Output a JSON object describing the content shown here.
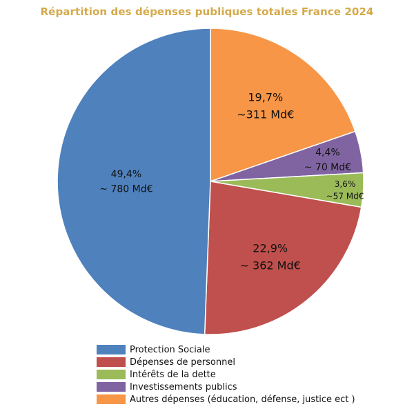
{
  "chart_data": {
    "type": "pie",
    "title": "Répartition des dépenses publiques totales France 2024",
    "slices": [
      {
        "name": "Protection Sociale",
        "percent": 49.4,
        "pct_label": "49,4%",
        "amount_label": "~ 780 Md€",
        "color": "#4f81bd"
      },
      {
        "name": "Dépenses de personnel",
        "percent": 22.9,
        "pct_label": "22,9%",
        "amount_label": "~ 362 Md€",
        "color": "#c0504d"
      },
      {
        "name": "Intérêts de la dette",
        "percent": 3.6,
        "pct_label": "3,6%",
        "amount_label": "~57 Md€",
        "color": "#9bbb59"
      },
      {
        "name": "Investissements publics",
        "percent": 4.4,
        "pct_label": "4,4%",
        "amount_label": "~ 70 Md€",
        "color": "#8064a2"
      },
      {
        "name": "Autres dépenses (éducation, défense, justice ect )",
        "percent": 19.7,
        "pct_label": "19,7%",
        "amount_label": "~311 Md€",
        "color": "#f79646"
      }
    ],
    "start_angle": "12 o'clock, clockwise",
    "slice_order": [
      "Autres dépenses (éducation, défense, justice ect )",
      "Investissements publics",
      "Intérêts de la dette",
      "Dépenses de personnel",
      "Protection Sociale"
    ],
    "legend_position": "bottom"
  }
}
